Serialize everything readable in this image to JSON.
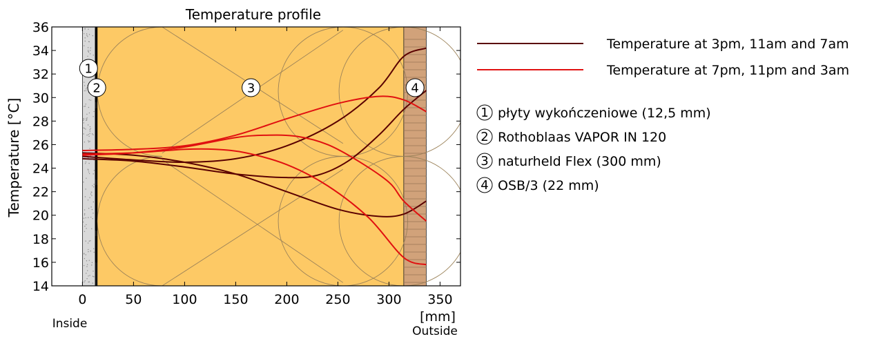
{
  "chart_data": {
    "type": "line",
    "title": "Temperature profile",
    "ylabel": "Temperature  [°C]",
    "xunit": "[mm]",
    "x_side_labels": {
      "left": "Inside",
      "right": "Outside"
    },
    "xlim": [
      -30,
      370
    ],
    "ylim": [
      14,
      36
    ],
    "xticks": [
      0,
      50,
      100,
      150,
      200,
      250,
      300,
      350
    ],
    "yticks": [
      14,
      16,
      18,
      20,
      22,
      24,
      26,
      28,
      30,
      32,
      34,
      36
    ],
    "layers": [
      {
        "id": "1",
        "x0": 0,
        "x1": 12.5,
        "label": "płyty wykończeniowe (12,5 mm)",
        "color": "#d9d9d9"
      },
      {
        "id": "2",
        "x0": 12.5,
        "x1": 14.5,
        "label": "Rothoblaas VAPOR IN 120",
        "color": "#111111"
      },
      {
        "id": "3",
        "x0": 14.5,
        "x1": 314.5,
        "label": "naturheld Flex (300 mm)",
        "color": "#fdc965"
      },
      {
        "id": "4",
        "x0": 314.5,
        "x1": 336.5,
        "label": "OSB/3 (22 mm)",
        "color": "#d1a27a"
      }
    ],
    "legend": [
      {
        "label": "Temperature at 3pm, 11am and 7am",
        "color": "#5a0000"
      },
      {
        "label": "Temperature at 7pm, 11pm and 3am",
        "color": "#e01010"
      }
    ],
    "series": [
      {
        "group": 0,
        "color": "#5a0000",
        "x": [
          0,
          50,
          100,
          150,
          200,
          250,
          290,
          314.5,
          336.5
        ],
        "y": [
          25.0,
          24.7,
          24.5,
          24.8,
          25.9,
          28.0,
          30.8,
          33.5,
          34.2
        ]
      },
      {
        "group": 0,
        "color": "#5a0000",
        "x": [
          0,
          50,
          100,
          150,
          200,
          230,
          260,
          290,
          314.5,
          336.5
        ],
        "y": [
          24.8,
          24.6,
          24.1,
          23.5,
          23.2,
          23.4,
          24.6,
          26.8,
          29.0,
          30.6
        ]
      },
      {
        "group": 0,
        "color": "#5a0000",
        "x": [
          0,
          50,
          100,
          150,
          200,
          250,
          290,
          314.5,
          336.5
        ],
        "y": [
          25.3,
          25.1,
          24.5,
          23.5,
          22.0,
          20.5,
          19.9,
          20.1,
          21.2
        ]
      },
      {
        "group": 1,
        "color": "#e01010",
        "x": [
          0,
          50,
          100,
          150,
          200,
          250,
          290,
          314.5,
          336.5
        ],
        "y": [
          25.5,
          25.6,
          25.9,
          26.8,
          28.2,
          29.5,
          30.1,
          29.8,
          28.8
        ]
      },
      {
        "group": 1,
        "color": "#e01010",
        "x": [
          0,
          50,
          100,
          150,
          180,
          210,
          240,
          270,
          300,
          314.5,
          336.5
        ],
        "y": [
          25.1,
          25.3,
          25.8,
          26.6,
          26.8,
          26.7,
          26.0,
          24.6,
          22.8,
          21.2,
          19.5
        ]
      },
      {
        "group": 1,
        "color": "#e01010",
        "x": [
          0,
          50,
          100,
          130,
          160,
          200,
          240,
          280,
          314.5,
          336.5
        ],
        "y": [
          25.2,
          25.3,
          25.6,
          25.6,
          25.3,
          24.3,
          22.5,
          19.8,
          16.4,
          15.8
        ]
      }
    ]
  }
}
